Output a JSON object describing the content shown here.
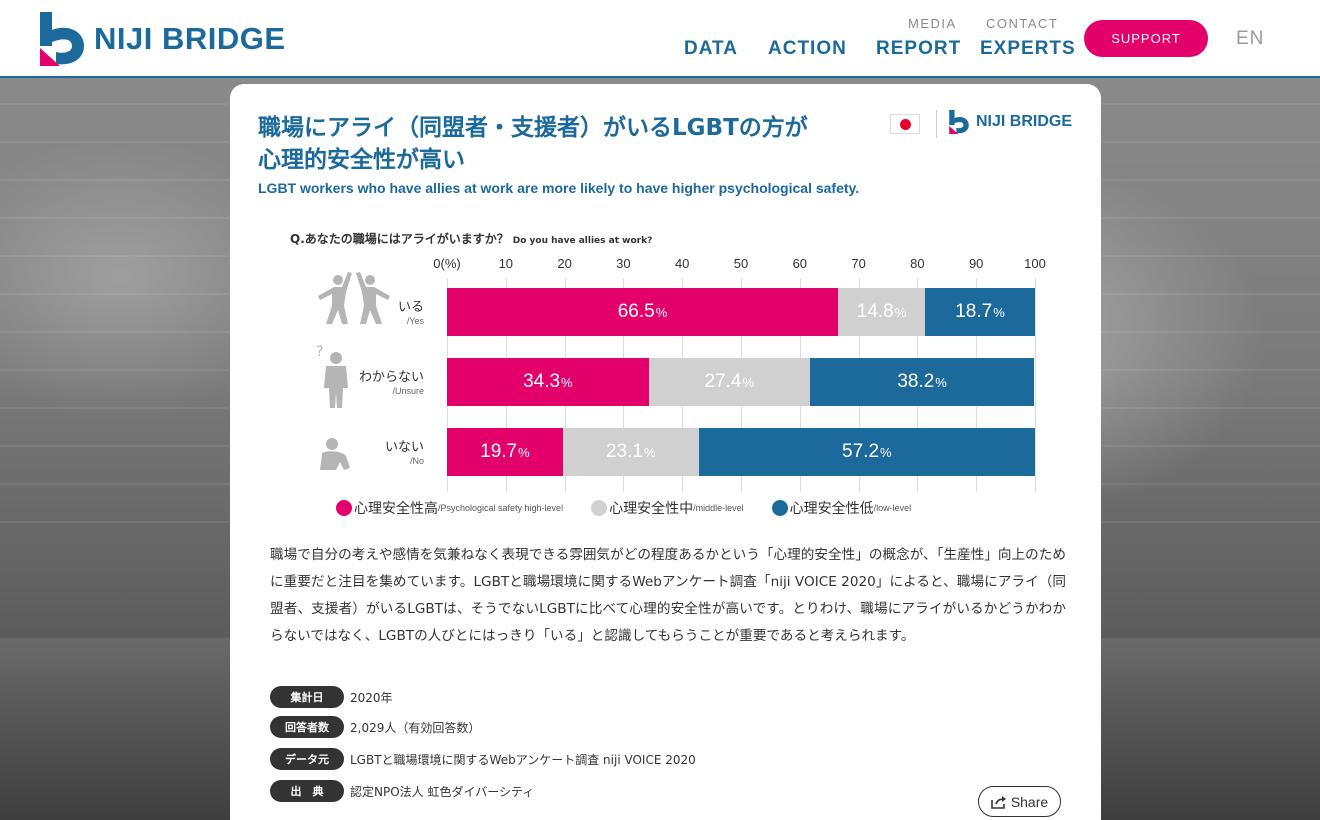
{
  "header": {
    "brand": "NIJI BRIDGE",
    "nav_top": [
      "MEDIA",
      "CONTACT"
    ],
    "nav_main": [
      "DATA",
      "ACTION",
      "REPORT",
      "EXPERTS"
    ],
    "support_label": "SUPPORT",
    "lang_label": "EN"
  },
  "colors": {
    "brand_blue": "#1c6a9b",
    "accent_pink": "#e4006a",
    "high": "#e4006a",
    "middle": "#d0d0d0",
    "low": "#1c6a9b"
  },
  "card": {
    "title_line1": "職場にアライ（同盟者・支援者）がいるLGBTの方が",
    "title_line2": "心理的安全性が高い",
    "subtitle": "LGBT workers who have allies at work are more likely to have higher psychological safety.",
    "logo_text": "NIJI BRIDGE",
    "question_jp": "Q.あなたの職場にはアライがいますか？",
    "question_en": "Do you have allies at work?"
  },
  "chart_data": {
    "type": "bar",
    "orientation": "horizontal",
    "stacked": true,
    "x_unit": "(%)",
    "xlim": [
      0,
      100
    ],
    "ticks": [
      "0",
      "10",
      "20",
      "30",
      "40",
      "50",
      "60",
      "70",
      "80",
      "90",
      "100"
    ],
    "categories": [
      {
        "jp": "いる",
        "en": "/Yes",
        "icon": "high-five-icon"
      },
      {
        "jp": "わからない",
        "en": "/Unsure",
        "icon": "confused-person-icon"
      },
      {
        "jp": "いない",
        "en": "/No",
        "icon": "sad-sitting-person-icon"
      }
    ],
    "series": [
      {
        "name": "心理安全性高",
        "name_en": "/Psychological safety high-level",
        "color": "#e4006a",
        "values": [
          66.5,
          34.3,
          19.7
        ]
      },
      {
        "name": "心理安全性中",
        "name_en": "/middle-level",
        "color": "#d0d0d0",
        "values": [
          14.8,
          27.4,
          23.1
        ]
      },
      {
        "name": "心理安全性低",
        "name_en": "/low-level",
        "color": "#1c6a9b",
        "values": [
          18.7,
          38.2,
          57.2
        ]
      }
    ]
  },
  "body_text": "職場で自分の考えや感情を気兼ねなく表現できる雰囲気がどの程度あるかという「心理的安全性」の概念が、「生産性」向上のために重要だと注目を集めています。LGBTと職場環境に関するWebアンケート調査「niji VOICE 2020」によると、職場にアライ（同盟者、支援者）がいるLGBTは、そうでないLGBTに比べて心理的安全性が高いです。とりわけ、職場にアライがいるかどうかわからないではなく、LGBTの人びとにはっきり「いる」と認識してもらうことが重要であると考えられます。",
  "meta": [
    {
      "label": "集計日",
      "value": "2020年"
    },
    {
      "label": "回答者数",
      "value": "2,029人（有効回答数）"
    },
    {
      "label": "データ元",
      "value": "LGBTと職場環境に関するWebアンケート調査 niji VOICE 2020"
    },
    {
      "label": "出　典",
      "value": "認定NPO法人 虹色ダイバーシティ"
    }
  ],
  "share_label": "Share"
}
